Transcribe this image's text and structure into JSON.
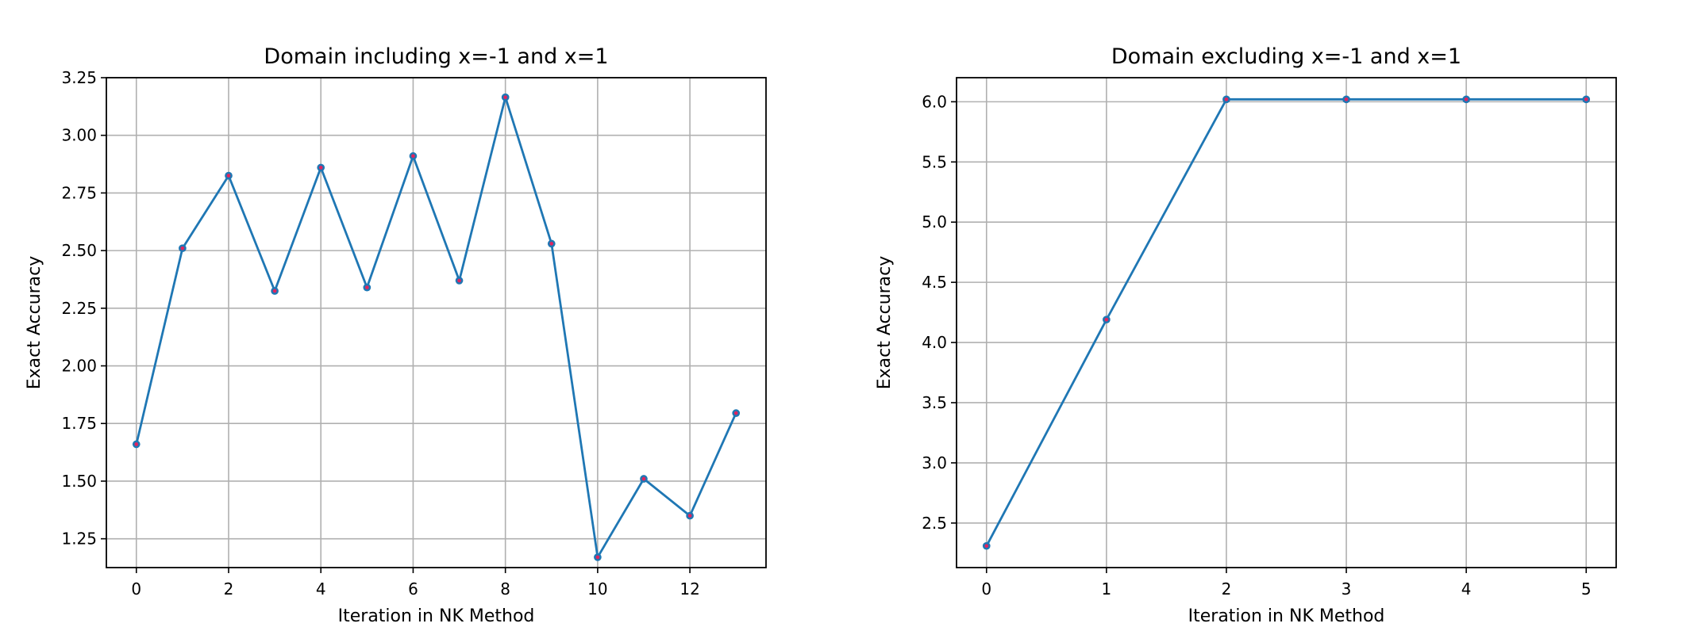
{
  "chart_data": [
    {
      "type": "line",
      "title": "Domain including x=-1 and x=1",
      "xlabel": "Iteration in NK Method",
      "ylabel": "Exact Accuracy",
      "xlim": [
        -0.65,
        13.65
      ],
      "ylim": [
        1.125,
        3.25
      ],
      "xticks": [
        0,
        2,
        4,
        6,
        8,
        10,
        12
      ],
      "yticks": [
        1.25,
        1.5,
        1.75,
        2.0,
        2.25,
        2.5,
        2.75,
        3.0,
        3.25
      ],
      "ytick_labels": [
        "1.25",
        "1.50",
        "1.75",
        "2.00",
        "2.25",
        "2.50",
        "2.75",
        "3.00",
        "3.25"
      ],
      "grid": true,
      "line_color": "#1f77b4",
      "marker_color": "#e0245e",
      "series": [
        {
          "x": [
            0,
            1,
            2,
            3,
            4,
            5,
            6,
            7,
            8,
            9,
            10,
            11,
            12,
            13
          ],
          "values": [
            1.66,
            2.51,
            2.825,
            2.325,
            2.86,
            2.34,
            2.91,
            2.37,
            3.165,
            2.53,
            1.17,
            1.51,
            1.35,
            1.795
          ]
        }
      ]
    },
    {
      "type": "line",
      "title": "Domain excluding x=-1 and x=1",
      "xlabel": "Iteration in NK Method",
      "ylabel": "Exact Accuracy",
      "xlim": [
        -0.25,
        5.25
      ],
      "ylim": [
        2.13,
        6.2
      ],
      "xticks": [
        0,
        1,
        2,
        3,
        4,
        5
      ],
      "yticks": [
        2.5,
        3.0,
        3.5,
        4.0,
        4.5,
        5.0,
        5.5,
        6.0
      ],
      "ytick_labels": [
        "2.5",
        "3.0",
        "3.5",
        "4.0",
        "4.5",
        "5.0",
        "5.5",
        "6.0"
      ],
      "grid": true,
      "line_color": "#1f77b4",
      "marker_color": "#e0245e",
      "series": [
        {
          "x": [
            0,
            1,
            2,
            3,
            4,
            5
          ],
          "values": [
            2.31,
            4.19,
            6.02,
            6.02,
            6.02,
            6.02
          ]
        }
      ]
    }
  ]
}
